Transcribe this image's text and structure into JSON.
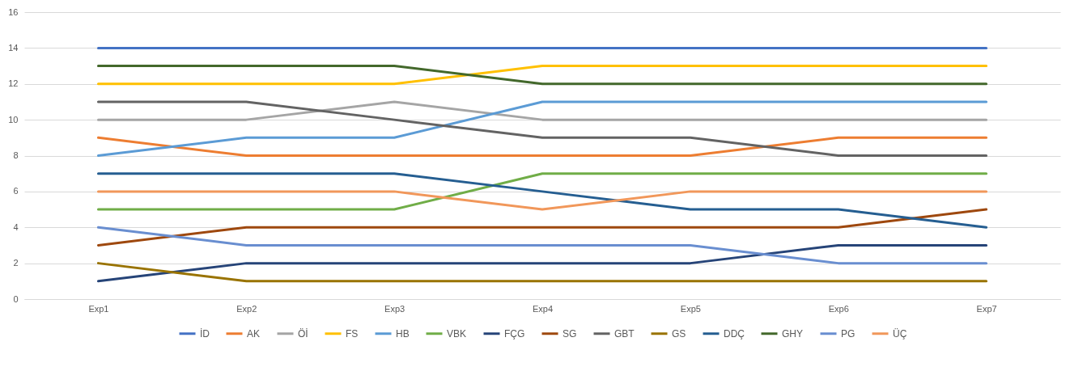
{
  "chart_data": {
    "type": "line",
    "categories": [
      "Exp1",
      "Exp2",
      "Exp3",
      "Exp4",
      "Exp5",
      "Exp6",
      "Exp7"
    ],
    "series": [
      {
        "name": "İD",
        "color": "#4472c4",
        "values": [
          14,
          14,
          14,
          14,
          14,
          14,
          14
        ]
      },
      {
        "name": "AK",
        "color": "#ed7d31",
        "values": [
          9,
          8,
          8,
          8,
          8,
          9,
          9
        ]
      },
      {
        "name": "Öİ",
        "color": "#a5a5a5",
        "values": [
          10,
          10,
          11,
          10,
          10,
          10,
          10
        ]
      },
      {
        "name": "FS",
        "color": "#ffc000",
        "values": [
          12,
          12,
          12,
          13,
          13,
          13,
          13
        ]
      },
      {
        "name": "HB",
        "color": "#5b9bd5",
        "values": [
          8,
          9,
          9,
          11,
          11,
          11,
          11
        ]
      },
      {
        "name": "VBK",
        "color": "#70ad47",
        "values": [
          5,
          5,
          5,
          7,
          7,
          7,
          7
        ]
      },
      {
        "name": "FÇG",
        "color": "#264478",
        "values": [
          1,
          2,
          2,
          2,
          2,
          3,
          3
        ]
      },
      {
        "name": "SG",
        "color": "#9e480e",
        "values": [
          3,
          4,
          4,
          4,
          4,
          4,
          5
        ]
      },
      {
        "name": "GBT",
        "color": "#636363",
        "values": [
          11,
          11,
          10,
          9,
          9,
          8,
          8
        ]
      },
      {
        "name": "GS",
        "color": "#997300",
        "values": [
          2,
          1,
          1,
          1,
          1,
          1,
          1
        ]
      },
      {
        "name": "DDÇ",
        "color": "#255e91",
        "values": [
          7,
          7,
          7,
          6,
          5,
          5,
          4
        ]
      },
      {
        "name": "GHY",
        "color": "#43682b",
        "values": [
          13,
          13,
          13,
          12,
          12,
          12,
          12
        ]
      },
      {
        "name": "PG",
        "color": "#698ed0",
        "values": [
          4,
          3,
          3,
          3,
          3,
          2,
          2
        ]
      },
      {
        "name": "ÜÇ",
        "color": "#f1975a",
        "values": [
          6,
          6,
          6,
          5,
          6,
          6,
          6
        ]
      }
    ],
    "ylim": [
      0,
      16
    ],
    "yticks": [
      0,
      2,
      4,
      6,
      8,
      10,
      12,
      14,
      16
    ],
    "grid": "y",
    "legend": "bottom",
    "marker": "none",
    "line_style": "solid"
  }
}
